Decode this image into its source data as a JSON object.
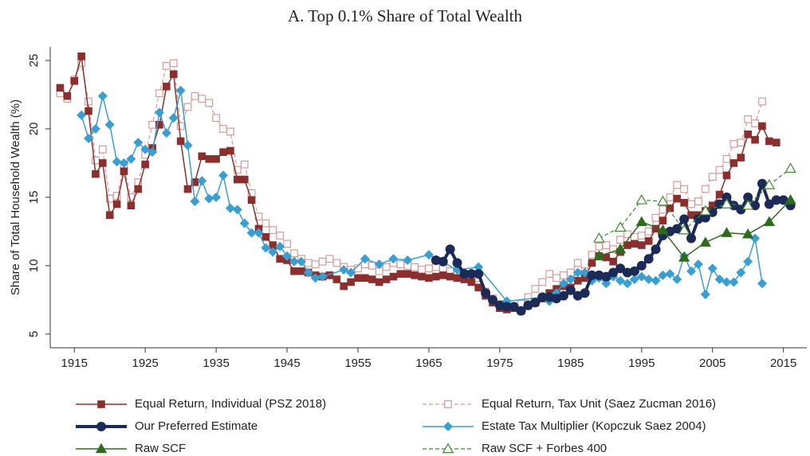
{
  "chart_data": {
    "type": "line",
    "title": "A. Top 0.1% Share of Total Wealth",
    "y_label": "Share of Total Household Wealth (%)",
    "xlim": [
      1911.6,
      2018.3
    ],
    "ylim": [
      4,
      26
    ],
    "xticks": [
      1915,
      1925,
      1935,
      1945,
      1955,
      1965,
      1975,
      1985,
      1995,
      2005,
      2015
    ],
    "yticks": [
      5,
      10,
      15,
      20,
      25
    ],
    "grid": false,
    "legend": "bottom",
    "series": [
      {
        "name": "Equal Return, Individual (PSZ 2018)",
        "color": "#8b2e2e",
        "marker": "square",
        "dash": false,
        "width": 1.5,
        "x": [
          1913,
          1914,
          1915,
          1916,
          1917,
          1918,
          1919,
          1920,
          1921,
          1922,
          1923,
          1924,
          1925,
          1926,
          1927,
          1928,
          1929,
          1930,
          1931,
          1932,
          1933,
          1934,
          1935,
          1936,
          1937,
          1938,
          1939,
          1940,
          1941,
          1942,
          1943,
          1944,
          1945,
          1946,
          1947,
          1948,
          1949,
          1950,
          1951,
          1952,
          1953,
          1954,
          1955,
          1956,
          1957,
          1958,
          1959,
          1960,
          1961,
          1962,
          1963,
          1964,
          1965,
          1966,
          1967,
          1968,
          1969,
          1970,
          1971,
          1972,
          1973,
          1974,
          1975,
          1976,
          1977,
          1978,
          1979,
          1980,
          1981,
          1982,
          1983,
          1984,
          1985,
          1986,
          1987,
          1988,
          1989,
          1990,
          1991,
          1992,
          1993,
          1994,
          1995,
          1996,
          1997,
          1998,
          1999,
          2000,
          2001,
          2002,
          2003,
          2004,
          2005,
          2006,
          2007,
          2008,
          2009,
          2010,
          2011,
          2012,
          2013,
          2014
        ],
        "values": [
          23.0,
          22.4,
          23.5,
          25.3,
          21.3,
          16.7,
          17.5,
          13.7,
          14.5,
          16.9,
          14.4,
          15.6,
          17.4,
          18.6,
          20.3,
          23.1,
          24.0,
          19.1,
          15.6,
          16.1,
          18.0,
          17.8,
          17.8,
          18.3,
          18.4,
          16.3,
          16.3,
          14.8,
          12.7,
          12.1,
          11.5,
          10.5,
          10.4,
          9.6,
          9.6,
          9.5,
          9.3,
          9.2,
          9.3,
          9.0,
          8.5,
          8.8,
          9.1,
          9.1,
          9.0,
          8.8,
          9.0,
          9.2,
          9.4,
          9.4,
          9.3,
          9.2,
          9.1,
          9.2,
          9.3,
          9.2,
          9.1,
          9.0,
          8.8,
          8.4,
          7.8,
          7.3,
          6.9,
          6.8,
          6.9,
          6.7,
          7.1,
          7.3,
          7.6,
          8.0,
          8.3,
          8.5,
          8.4,
          8.9,
          9.1,
          10.2,
          10.7,
          10.6,
          10.3,
          11.0,
          11.5,
          11.6,
          11.5,
          11.8,
          12.7,
          13.3,
          14.2,
          14.9,
          14.6,
          13.7,
          13.7,
          14.0,
          14.4,
          15.2,
          16.6,
          17.5,
          17.9,
          19.6,
          19.2,
          20.2,
          19.1,
          19.0
        ]
      },
      {
        "name": "Equal Return, Tax Unit (Saez Zucman 2016)",
        "color": "#d49a9a",
        "marker": "square-open",
        "dash": true,
        "width": 1.2,
        "x": [
          1913,
          1914,
          1915,
          1916,
          1917,
          1918,
          1919,
          1920,
          1921,
          1922,
          1923,
          1924,
          1925,
          1926,
          1927,
          1928,
          1929,
          1930,
          1931,
          1932,
          1933,
          1934,
          1935,
          1936,
          1937,
          1938,
          1939,
          1940,
          1941,
          1942,
          1943,
          1944,
          1945,
          1946,
          1947,
          1948,
          1949,
          1950,
          1951,
          1952,
          1953,
          1954,
          1955,
          1956,
          1957,
          1958,
          1959,
          1960,
          1961,
          1962,
          1963,
          1964,
          1965,
          1966,
          1967,
          1968,
          1969,
          1970,
          1971,
          1972,
          1973,
          1974,
          1975,
          1976,
          1977,
          1978,
          1979,
          1980,
          1981,
          1982,
          1983,
          1984,
          1985,
          1986,
          1987,
          1988,
          1989,
          1990,
          1991,
          1992,
          1993,
          1994,
          1995,
          1996,
          1997,
          1998,
          1999,
          2000,
          2001,
          2002,
          2003,
          2004,
          2005,
          2006,
          2007,
          2008,
          2009,
          2010,
          2011,
          2012
        ],
        "values": [
          22.6,
          22.2,
          23.6,
          24.8,
          22.0,
          17.7,
          18.5,
          14.9,
          15.1,
          17.2,
          15.0,
          16.1,
          18.1,
          20.3,
          22.6,
          24.6,
          24.8,
          20.2,
          21.6,
          22.4,
          22.2,
          21.9,
          20.8,
          20.0,
          19.8,
          17.0,
          17.4,
          15.3,
          13.6,
          13.1,
          12.6,
          12.2,
          11.6,
          10.9,
          10.5,
          10.2,
          10.1,
          10.3,
          10.5,
          10.2,
          9.9,
          9.7,
          9.8,
          10.1,
          10.0,
          9.6,
          9.9,
          10.2,
          10.1,
          10.0,
          9.9,
          9.7,
          9.8,
          9.9,
          9.8,
          9.6,
          9.4,
          9.3,
          9.1,
          8.6,
          8.1,
          7.6,
          7.2,
          7.1,
          7.0,
          7.2,
          7.7,
          8.3,
          8.8,
          9.4,
          9.1,
          9.3,
          9.5,
          10.2,
          9.6,
          10.8,
          11.4,
          11.5,
          11.2,
          11.9,
          12.3,
          12.1,
          12.2,
          12.5,
          13.5,
          14.1,
          15.0,
          15.9,
          15.6,
          14.5,
          14.7,
          15.6,
          16.5,
          17.0,
          17.8,
          18.9,
          19.0,
          20.7,
          20.4,
          22.0
        ]
      },
      {
        "name": "Our Preferred Estimate",
        "color": "#1b2a57",
        "marker": "circle",
        "dash": false,
        "width": 4,
        "x": [
          1966,
          1967,
          1968,
          1969,
          1970,
          1971,
          1972,
          1973,
          1974,
          1975,
          1976,
          1977,
          1978,
          1979,
          1980,
          1981,
          1982,
          1983,
          1984,
          1985,
          1986,
          1987,
          1988,
          1989,
          1990,
          1991,
          1992,
          1993,
          1994,
          1995,
          1996,
          1997,
          1998,
          1999,
          2000,
          2001,
          2002,
          2003,
          2004,
          2005,
          2006,
          2007,
          2008,
          2009,
          2010,
          2011,
          2012,
          2013,
          2014,
          2015,
          2016
        ],
        "values": [
          10.4,
          10.3,
          11.2,
          10.2,
          9.4,
          9.4,
          9.4,
          8.0,
          7.5,
          7.1,
          7.0,
          7.0,
          6.7,
          7.1,
          7.3,
          7.7,
          7.7,
          7.6,
          7.8,
          8.2,
          7.8,
          8.0,
          9.3,
          9.3,
          9.2,
          9.5,
          9.8,
          9.5,
          9.6,
          10.0,
          10.5,
          11.2,
          12.2,
          12.5,
          12.7,
          13.4,
          12.0,
          13.4,
          13.5,
          13.9,
          14.5,
          15.0,
          14.4,
          14.1,
          15.0,
          14.4,
          16.0,
          14.5,
          14.8,
          14.8,
          14.4
        ]
      },
      {
        "name": "Estate Tax Multiplier (Kopczuk Saez 2004)",
        "color": "#3a9fd0",
        "marker": "diamond",
        "dash": false,
        "width": 1.5,
        "x": [
          1916,
          1917,
          1918,
          1919,
          1920,
          1921,
          1922,
          1923,
          1924,
          1925,
          1926,
          1927,
          1928,
          1929,
          1930,
          1931,
          1932,
          1933,
          1934,
          1935,
          1936,
          1937,
          1938,
          1939,
          1940,
          1941,
          1942,
          1943,
          1944,
          1945,
          1946,
          1947,
          1948,
          1949,
          1950,
          1953,
          1954,
          1956,
          1958,
          1960,
          1962,
          1965,
          1969,
          1972,
          1976,
          1981,
          1982,
          1983,
          1984,
          1985,
          1986,
          1987,
          1988,
          1989,
          1990,
          1991,
          1992,
          1993,
          1994,
          1995,
          1996,
          1997,
          1998,
          1999,
          2000,
          2001,
          2002,
          2003,
          2004,
          2005,
          2006,
          2007,
          2008,
          2009,
          2010,
          2011,
          2012
        ],
        "values": [
          21.0,
          19.3,
          20.0,
          22.4,
          20.3,
          17.6,
          17.5,
          17.8,
          19.0,
          18.5,
          18.3,
          21.2,
          19.7,
          20.8,
          22.8,
          18.8,
          14.7,
          16.2,
          14.9,
          15.0,
          16.6,
          14.2,
          14.1,
          13.1,
          12.4,
          12.4,
          11.3,
          11.0,
          11.4,
          10.7,
          10.3,
          10.3,
          9.5,
          9.1,
          9.2,
          9.7,
          9.5,
          10.5,
          10.1,
          10.5,
          10.4,
          10.8,
          9.7,
          9.9,
          7.4,
          7.7,
          7.4,
          8.0,
          8.7,
          9.0,
          9.5,
          9.5,
          8.9,
          9.1,
          8.7,
          9.2,
          8.9,
          8.7,
          9.0,
          9.2,
          9.0,
          8.9,
          9.3,
          9.4,
          9.0,
          10.7,
          9.6,
          10.1,
          7.9,
          9.8,
          9.0,
          8.8,
          8.8,
          9.5,
          10.3,
          12.0,
          8.7
        ]
      },
      {
        "name": "Raw SCF",
        "color": "#2e6b1f",
        "marker": "triangle",
        "dash": false,
        "width": 1.5,
        "x": [
          1989,
          1992,
          1995,
          1998,
          2001,
          2004,
          2007,
          2010,
          2013,
          2016
        ],
        "values": [
          10.7,
          11.2,
          13.2,
          12.6,
          10.6,
          11.7,
          12.4,
          12.3,
          13.2,
          14.8
        ]
      },
      {
        "name": "Raw SCF + Forbes 400",
        "color": "#3b8a2e",
        "marker": "triangle-open",
        "dash": true,
        "width": 1.2,
        "x": [
          1989,
          1992,
          1995,
          1998,
          2001,
          2004,
          2007,
          2010,
          2013,
          2016
        ],
        "values": [
          12.0,
          12.8,
          14.8,
          14.7,
          12.6,
          14.0,
          14.5,
          14.4,
          15.9,
          17.1
        ]
      }
    ]
  }
}
